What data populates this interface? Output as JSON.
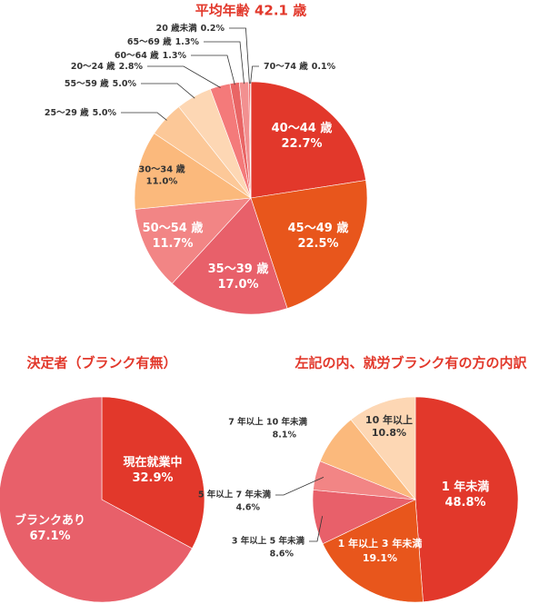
{
  "chart_data": [
    {
      "type": "pie",
      "title": "平均年齢 42.1 歳",
      "categories": [
        "40〜44 歳",
        "45〜49 歳",
        "35〜39 歳",
        "50〜54 歳",
        "30〜34 歳",
        "25〜29 歳",
        "55〜59 歳",
        "20〜24 歳",
        "60〜64 歳",
        "65〜69 歳",
        "20 歳未満",
        "70〜74 歳"
      ],
      "values": [
        22.7,
        22.5,
        17.0,
        11.7,
        11.0,
        5.0,
        5.0,
        2.8,
        1.3,
        1.3,
        0.2,
        0.1
      ],
      "value_labels": [
        "22.7%",
        "22.5%",
        "17.0%",
        "11.7%",
        "11.0%",
        "5.0%",
        "5.0%",
        "2.8%",
        "1.3%",
        "1.3%",
        "0.2%",
        "0.1%"
      ],
      "colors": [
        "#e2382b",
        "#e8561c",
        "#e8606a",
        "#f28585",
        "#fbb97c",
        "#fcc898",
        "#fdd7b4",
        "#f47a7a",
        "#e96565",
        "#f29090",
        "#ee5a5a",
        "#e2382b"
      ]
    },
    {
      "type": "pie",
      "title": "決定者（ブランク有無）",
      "categories": [
        "現在就業中",
        "ブランクあり"
      ],
      "values": [
        32.9,
        67.1
      ],
      "value_labels": [
        "32.9%",
        "67.1%"
      ],
      "colors": [
        "#e2382b",
        "#e8606a"
      ]
    },
    {
      "type": "pie",
      "title": "左記の内、就労ブランク有の方の内訳",
      "categories": [
        "1 年未満",
        "1 年以上 3 年未満",
        "3 年以上 5 年未満",
        "5 年以上 7 年未満",
        "7 年以上 10 年未満",
        "10 年以上"
      ],
      "values": [
        48.8,
        19.1,
        8.6,
        4.6,
        8.1,
        10.8
      ],
      "value_labels": [
        "48.8%",
        "19.1%",
        "8.6%",
        "4.6%",
        "8.1%",
        "10.8%"
      ],
      "colors": [
        "#e2382b",
        "#e8561c",
        "#e8606a",
        "#f28585",
        "#fbb97c",
        "#fdd7b4"
      ]
    }
  ]
}
